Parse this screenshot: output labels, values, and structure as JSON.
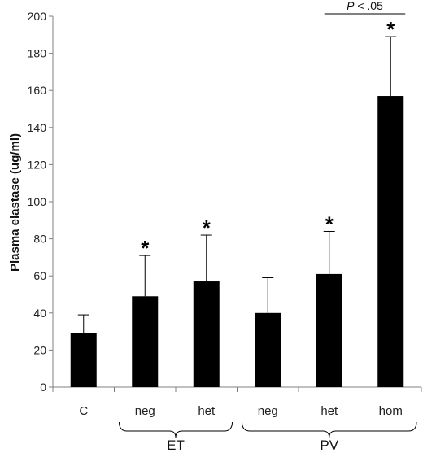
{
  "chart_data": {
    "type": "bar",
    "ylabel": "Plasma elastase (ug/ml)",
    "ylim": [
      0,
      200
    ],
    "yticks": [
      "0",
      "20",
      "40",
      "60",
      "80",
      "100",
      "120",
      "140",
      "160",
      "180",
      "200"
    ],
    "categories": [
      "C",
      "neg",
      "het",
      "neg",
      "het",
      "hom"
    ],
    "values": [
      29,
      49,
      57,
      40,
      61,
      157
    ],
    "error_upper": [
      39,
      71,
      82,
      59,
      84,
      189
    ],
    "significance": [
      "",
      "*",
      "*",
      "",
      "*",
      "*"
    ],
    "groups": [
      {
        "label": "ET",
        "from": 1,
        "to": 2
      },
      {
        "label": "PV",
        "from": 3,
        "to": 5
      }
    ],
    "comparison": {
      "label_italic": "P",
      "label_rest": " < .05",
      "from": 4,
      "to": 5
    },
    "grid": false,
    "legend": "none",
    "bar_color": "#000000",
    "axis_color": "#808080"
  }
}
